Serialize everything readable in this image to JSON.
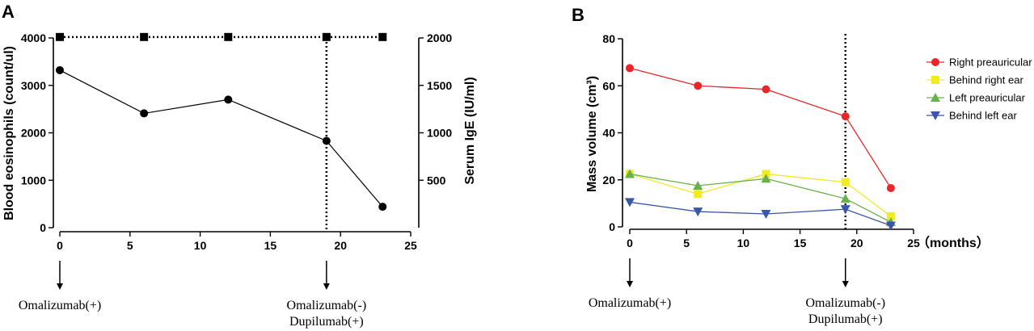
{
  "chart_data": [
    {
      "panel": "A",
      "type": "line",
      "x_ticks": [
        0,
        5,
        10,
        15,
        20,
        25
      ],
      "xlim": [
        0,
        25
      ],
      "ylabel_left": "Blood eosinophils (count/ul)",
      "ylim_left": [
        0,
        4000
      ],
      "y_ticks_left": [
        0,
        1000,
        2000,
        3000,
        4000
      ],
      "ylabel_right": "Serum IgE (IU/ml)",
      "ylim_right": [
        0,
        2000
      ],
      "y_ticks_right": [
        500,
        1000,
        1500,
        2000
      ],
      "series": [
        {
          "name": "Blood eosinophils",
          "axis": "left",
          "marker": "circle",
          "line": "solid",
          "x": [
            0,
            6,
            12,
            19,
            23
          ],
          "y": [
            3320,
            2410,
            2700,
            1830,
            440
          ]
        },
        {
          "name": "Serum IgE",
          "axis": "right",
          "marker": "square",
          "line": "dotted",
          "x": [
            0,
            6,
            12,
            19,
            23
          ],
          "y": [
            2010,
            2010,
            2010,
            2010,
            2010
          ]
        }
      ],
      "vline_x": 19,
      "annotations": [
        {
          "x": 0,
          "lines": [
            "Omalizumab(+)"
          ]
        },
        {
          "x": 19,
          "lines": [
            "Omalizumab(-)",
            "Dupilumab(+)"
          ]
        }
      ]
    },
    {
      "panel": "B",
      "type": "line",
      "x_ticks": [
        0,
        5,
        10,
        15,
        20,
        25
      ],
      "xlim": [
        0,
        25
      ],
      "xlabel": "（months）",
      "ylabel": "Mass volume (cm³)",
      "ylim": [
        0,
        80
      ],
      "y_ticks": [
        0,
        20,
        40,
        60,
        80
      ],
      "series": [
        {
          "name": "Right preauricular",
          "color": "#e8262a",
          "marker": "circle",
          "x": [
            0,
            6,
            12,
            19,
            23
          ],
          "y": [
            67.5,
            60,
            58.5,
            47,
            16.5
          ]
        },
        {
          "name": "Behind right ear",
          "color": "#f2ea23",
          "marker": "square",
          "x": [
            0,
            6,
            12,
            19,
            23
          ],
          "y": [
            22.5,
            14,
            22.5,
            19,
            4.5
          ]
        },
        {
          "name": "Left preauricular",
          "color": "#6ab04c",
          "marker": "triangle-up",
          "x": [
            0,
            6,
            12,
            19,
            23
          ],
          "y": [
            22.5,
            17.5,
            20.5,
            12,
            2
          ]
        },
        {
          "name": "Behind left ear",
          "color": "#3a56a8",
          "marker": "triangle-down",
          "x": [
            0,
            6,
            12,
            19,
            23
          ],
          "y": [
            10.5,
            6.5,
            5.5,
            7.5,
            0.5
          ]
        }
      ],
      "vline_x": 19,
      "legend_position": "right",
      "annotations": [
        {
          "x": 0,
          "lines": [
            "Omalizumab(+)"
          ]
        },
        {
          "x": 19,
          "lines": [
            "Omalizumab(-)",
            "Dupilumab(+)"
          ]
        }
      ]
    }
  ]
}
